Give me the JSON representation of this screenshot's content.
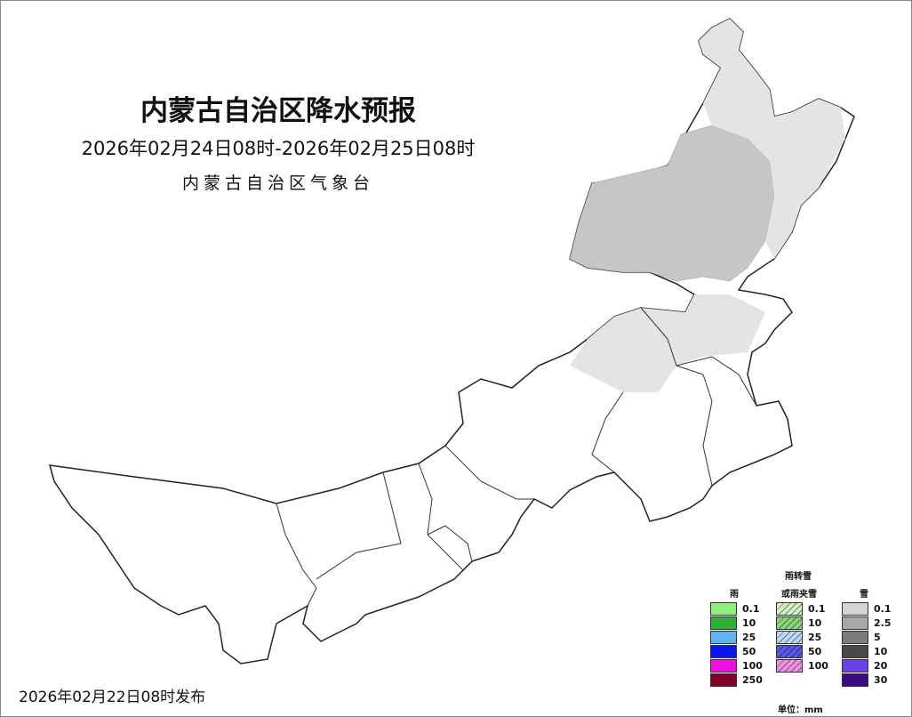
{
  "header": {
    "title": "内蒙古自治区降水预报",
    "period": "2026年02月24日08时-2026年02月25日08时",
    "issuer": "内蒙古自治区气象台"
  },
  "footer": {
    "issued": "2026年02月22日08时发布"
  },
  "map": {
    "region": "内蒙古自治区",
    "forecast_color": "#c6c6c6"
  },
  "legend": {
    "top_label": "雨转雪",
    "unit": "单位：mm",
    "groups": [
      {
        "label": "雨",
        "levels": [
          "0.1",
          "10",
          "25",
          "50",
          "100",
          "250"
        ],
        "colors": [
          "#8ef07a",
          "#2fb03a",
          "#5fb4f4",
          "#0a16f0",
          "#ee10e0",
          "#82002e"
        ]
      },
      {
        "label": "或雨夹雪",
        "levels": [
          "0.1",
          "10",
          "25",
          "50",
          "100"
        ],
        "colors": [
          "#d4f4c4",
          "#88d878",
          "#b8dcf4",
          "#5a58e8",
          "#f090e8"
        ]
      },
      {
        "label": "雪",
        "levels": [
          "0.1",
          "2.5",
          "5",
          "10",
          "20",
          "30"
        ],
        "colors": [
          "#d4d4d4",
          "#a8a8a8",
          "#7c7c7c",
          "#4a4a4a",
          "#6a40e8",
          "#3a0a80"
        ]
      }
    ]
  }
}
